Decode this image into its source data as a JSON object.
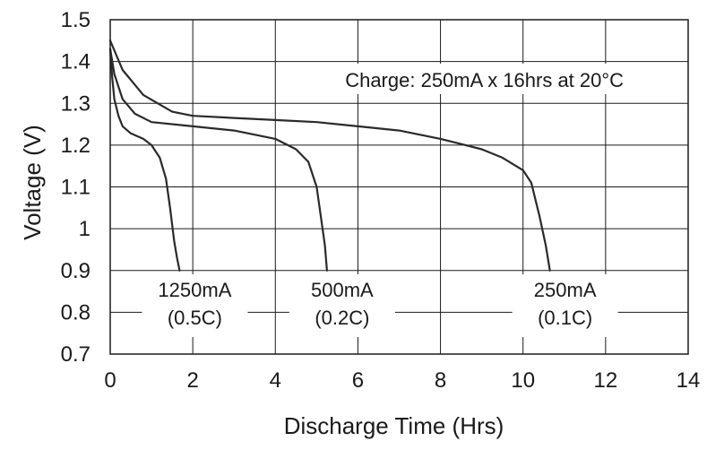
{
  "chart_data": {
    "type": "line",
    "title": "",
    "xlabel": "Discharge Time (Hrs)",
    "ylabel": "Voltage (V)",
    "xlim": [
      0,
      14
    ],
    "ylim": [
      0.7,
      1.5
    ],
    "xticks": [
      "0",
      "2",
      "4",
      "6",
      "8",
      "10",
      "12",
      "14"
    ],
    "yticks": [
      "0.7",
      "0.8",
      "0.9",
      "1",
      "1.1",
      "1.2",
      "1.3",
      "1.4",
      "1.5"
    ],
    "grid": true,
    "annotation": "Charge: 250mA x 16hrs at 20°C",
    "series": [
      {
        "name": "1250mA (0.5C)",
        "label_line1": "1250mA",
        "label_line2": "(0.5C)",
        "points": [
          [
            0,
            1.43
          ],
          [
            0.05,
            1.36
          ],
          [
            0.1,
            1.31
          ],
          [
            0.2,
            1.27
          ],
          [
            0.3,
            1.245
          ],
          [
            0.5,
            1.228
          ],
          [
            0.8,
            1.215
          ],
          [
            1.0,
            1.2
          ],
          [
            1.2,
            1.17
          ],
          [
            1.35,
            1.12
          ],
          [
            1.45,
            1.05
          ],
          [
            1.55,
            0.97
          ],
          [
            1.62,
            0.93
          ],
          [
            1.68,
            0.9
          ]
        ]
      },
      {
        "name": "500mA (0.2C)",
        "label_line1": "500mA",
        "label_line2": "(0.2C)",
        "points": [
          [
            0,
            1.43
          ],
          [
            0.1,
            1.37
          ],
          [
            0.3,
            1.31
          ],
          [
            0.6,
            1.275
          ],
          [
            1.0,
            1.255
          ],
          [
            2.0,
            1.245
          ],
          [
            3.0,
            1.235
          ],
          [
            4.0,
            1.215
          ],
          [
            4.5,
            1.19
          ],
          [
            4.8,
            1.16
          ],
          [
            5.0,
            1.1
          ],
          [
            5.1,
            1.03
          ],
          [
            5.2,
            0.96
          ],
          [
            5.25,
            0.9
          ]
        ]
      },
      {
        "name": "250mA (0.1C)",
        "label_line1": "250mA",
        "label_line2": "(0.1C)",
        "points": [
          [
            0,
            1.45
          ],
          [
            0.3,
            1.38
          ],
          [
            0.8,
            1.32
          ],
          [
            1.5,
            1.28
          ],
          [
            2.0,
            1.27
          ],
          [
            3.0,
            1.265
          ],
          [
            4.0,
            1.26
          ],
          [
            5.0,
            1.255
          ],
          [
            6.0,
            1.245
          ],
          [
            7.0,
            1.235
          ],
          [
            8.0,
            1.215
          ],
          [
            9.0,
            1.19
          ],
          [
            9.5,
            1.17
          ],
          [
            10.0,
            1.14
          ],
          [
            10.2,
            1.11
          ],
          [
            10.4,
            1.03
          ],
          [
            10.55,
            0.96
          ],
          [
            10.65,
            0.9
          ]
        ]
      }
    ]
  }
}
